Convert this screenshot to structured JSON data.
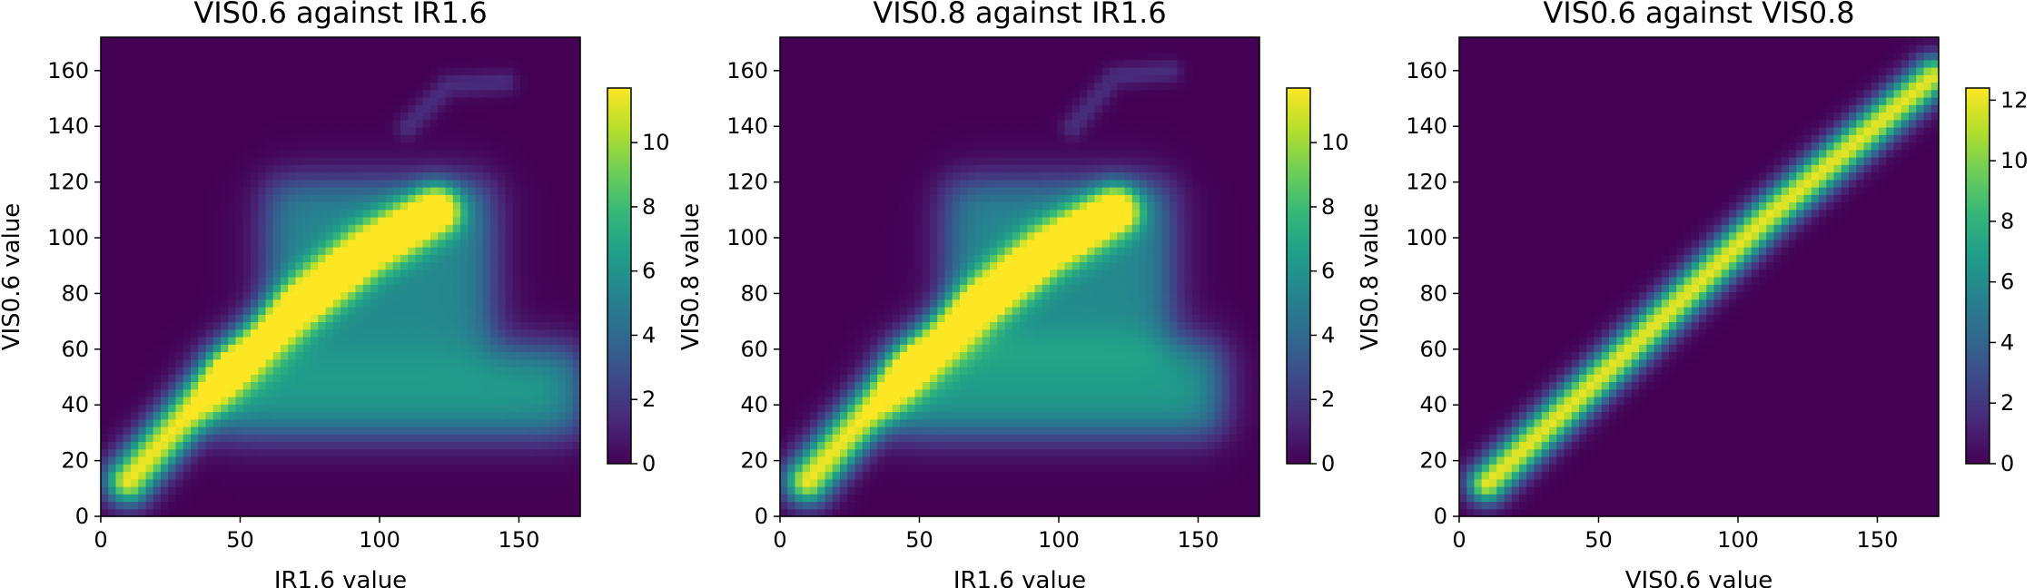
{
  "colormap": [
    "#440154",
    "#482878",
    "#3e4989",
    "#31688e",
    "#26828e",
    "#1f9e89",
    "#35b779",
    "#6ece58",
    "#b5de2b",
    "#fde725"
  ],
  "chart_data": [
    {
      "type": "heatmap",
      "title": "VIS0.6 against IR1.6",
      "xlabel": "IR1.6 value",
      "ylabel": "VIS0.6 value",
      "xlim": [
        0,
        172
      ],
      "ylim": [
        0,
        172
      ],
      "x_ticks": [
        "0",
        "50",
        "100",
        "150"
      ],
      "y_ticks": [
        "0",
        "20",
        "40",
        "60",
        "80",
        "100",
        "120",
        "140",
        "160"
      ],
      "colorbar_ticks": [
        "0",
        "2",
        "4",
        "6",
        "8",
        "10"
      ],
      "colorbar_range": [
        0,
        11.7
      ],
      "density_components": [
        {
          "description": "diagonal ridge",
          "path": [
            [
              10,
              13
            ],
            [
              25,
              30
            ],
            [
              45,
              52
            ],
            [
              70,
              75
            ],
            [
              95,
              95
            ],
            [
              120,
              110
            ]
          ],
          "spread": 6,
          "peak": 11.5
        },
        {
          "description": "cloud band",
          "x_range": [
            40,
            172
          ],
          "y_range": [
            30,
            60
          ],
          "peak": 6.5
        },
        {
          "description": "upper lobe",
          "x_range": [
            60,
            140
          ],
          "y_range": [
            60,
            120
          ],
          "peak": 5.5
        },
        {
          "description": "thin arc",
          "path": [
            [
              110,
              140
            ],
            [
              125,
              155
            ],
            [
              145,
              156
            ]
          ],
          "spread": 3,
          "peak": 1.5
        }
      ]
    },
    {
      "type": "heatmap",
      "title": "VIS0.8 against IR1.6",
      "xlabel": "IR1.6 value",
      "ylabel": "VIS0.8 value",
      "xlim": [
        0,
        172
      ],
      "ylim": [
        0,
        172
      ],
      "x_ticks": [
        "0",
        "50",
        "100",
        "150"
      ],
      "y_ticks": [
        "0",
        "20",
        "40",
        "60",
        "80",
        "100",
        "120",
        "140",
        "160"
      ],
      "colorbar_ticks": [
        "0",
        "2",
        "4",
        "6",
        "8",
        "10"
      ],
      "colorbar_range": [
        0,
        11.7
      ],
      "density_components": [
        {
          "description": "diagonal ridge",
          "path": [
            [
              10,
              13
            ],
            [
              25,
              30
            ],
            [
              45,
              52
            ],
            [
              70,
              75
            ],
            [
              95,
              95
            ],
            [
              120,
              110
            ]
          ],
          "spread": 6,
          "peak": 11.5
        },
        {
          "description": "cloud band",
          "x_range": [
            40,
            158
          ],
          "y_range": [
            30,
            62
          ],
          "peak": 6.5
        },
        {
          "description": "upper lobe",
          "x_range": [
            60,
            140
          ],
          "y_range": [
            60,
            120
          ],
          "peak": 5.5
        },
        {
          "description": "thin arc",
          "path": [
            [
              105,
              140
            ],
            [
              120,
              158
            ],
            [
              140,
              160
            ]
          ],
          "spread": 3,
          "peak": 1.5
        }
      ]
    },
    {
      "type": "heatmap",
      "title": "VIS0.6 against VIS0.8",
      "xlabel": "VIS0.6 value",
      "ylabel": "VIS0.8 value",
      "xlim": [
        0,
        172
      ],
      "ylim": [
        0,
        172
      ],
      "x_ticks": [
        "0",
        "50",
        "100",
        "150"
      ],
      "y_ticks": [
        "0",
        "20",
        "40",
        "60",
        "80",
        "100",
        "120",
        "140",
        "160"
      ],
      "colorbar_ticks": [
        "0",
        "2",
        "4",
        "6",
        "8",
        "10",
        "12"
      ],
      "colorbar_range": [
        0,
        12.4
      ],
      "density_components": [
        {
          "description": "diagonal line",
          "path": [
            [
              10,
              12
            ],
            [
              60,
              59
            ],
            [
              110,
              107
            ],
            [
              170,
              158
            ]
          ],
          "spread": 5,
          "peak": 12
        }
      ]
    }
  ]
}
